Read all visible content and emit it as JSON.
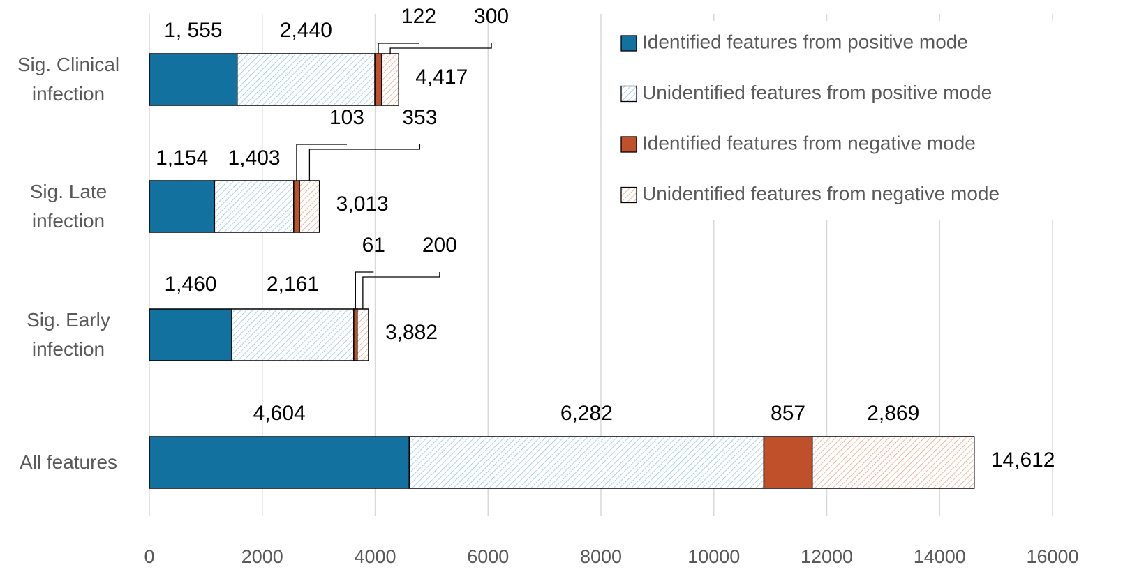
{
  "chart_data": {
    "type": "stacked-bar-horizontal",
    "categories": [
      "Sig. Clinical infection",
      "Sig. Late infection",
      "Sig. Early infection",
      "All features"
    ],
    "series": [
      {
        "name": "Identified features from positive mode",
        "color": "#13719f",
        "hatch": false,
        "values": [
          1555,
          1154,
          1460,
          4604
        ],
        "value_labels": [
          "1, 555",
          "1,154",
          "1,460",
          "4,604"
        ]
      },
      {
        "name": "Unidentified features from positive mode",
        "color": "#8fc1e3",
        "hatch": true,
        "values": [
          2440,
          1403,
          2161,
          6282
        ],
        "value_labels": [
          "2,440",
          "1,403",
          "2,161",
          "6,282"
        ]
      },
      {
        "name": "Identified features from negative mode",
        "color": "#c0502a",
        "hatch": false,
        "values": [
          122,
          103,
          61,
          857
        ],
        "value_labels": [
          "122",
          "103",
          "61",
          "857"
        ]
      },
      {
        "name": "Unidentified features from negative mode",
        "color": "#f09a78",
        "hatch": true,
        "values": [
          300,
          353,
          200,
          2869
        ],
        "value_labels": [
          "300",
          "353",
          "200",
          "2,869"
        ]
      }
    ],
    "totals": [
      4417,
      3013,
      3882,
      14612
    ],
    "total_labels": [
      "4,417",
      "3,013",
      "3,882",
      "14,612"
    ],
    "xlim": [
      0,
      16000
    ],
    "xticks": [
      0,
      2000,
      4000,
      6000,
      8000,
      10000,
      12000,
      14000,
      16000
    ],
    "grid": true,
    "legend": "upper right"
  }
}
